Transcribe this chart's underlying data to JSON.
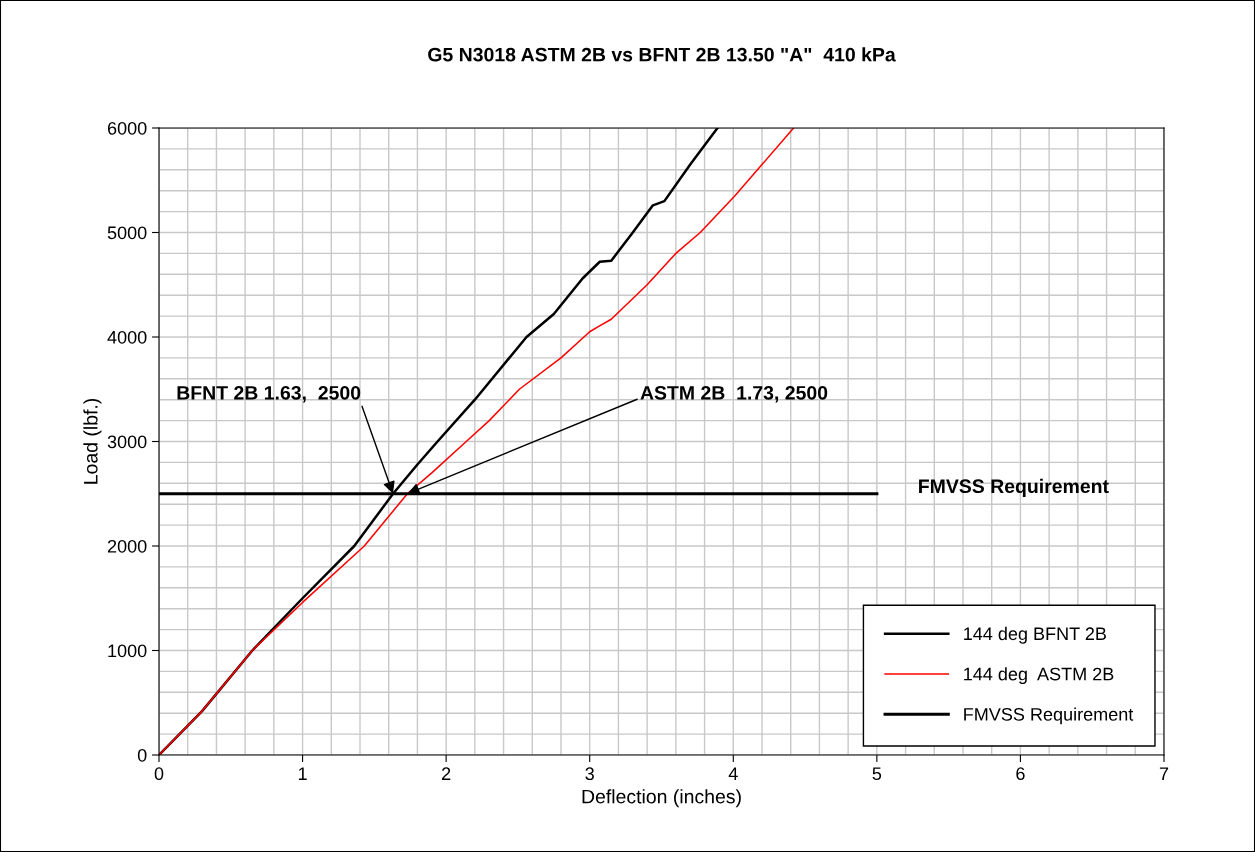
{
  "chart_data": {
    "type": "line",
    "title": "G5 N3018 ASTM 2B vs BFNT 2B 13.50 \"A\"  410 kPa",
    "xlabel": "Deflection (inches)",
    "ylabel": "Load (lbf.)",
    "xlim": [
      0,
      7
    ],
    "ylim": [
      0,
      6000
    ],
    "xticks": [
      0,
      1,
      2,
      3,
      4,
      5,
      6,
      7
    ],
    "yticks": [
      0,
      1000,
      2000,
      3000,
      4000,
      5000,
      6000
    ],
    "grid": true,
    "legend": "bottom right",
    "marker": "none",
    "line_style": "solid",
    "series": [
      {
        "name": "144 deg BFNT 2B",
        "color": "#000000",
        "x": [
          0,
          0.3,
          0.65,
          1.0,
          1.36,
          1.63,
          1.8,
          1.94,
          2.2,
          2.56,
          2.75,
          2.95,
          3.07,
          3.15,
          3.3,
          3.44,
          3.52,
          3.7,
          3.89
        ],
        "values": [
          0,
          420,
          1000,
          1500,
          2000,
          2500,
          2780,
          3000,
          3400,
          4000,
          4220,
          4560,
          4720,
          4730,
          5000,
          5260,
          5300,
          5650,
          6000
        ]
      },
      {
        "name": "144 deg  ASTM 2B",
        "color": "#ff0000",
        "x": [
          0,
          0.3,
          0.65,
          1.0,
          1.43,
          1.73,
          1.9,
          2.14,
          2.3,
          2.51,
          2.8,
          3.0,
          3.06,
          3.15,
          3.4,
          3.6,
          3.77,
          4.01,
          4.2,
          4.42
        ],
        "values": [
          0,
          420,
          1000,
          1460,
          2000,
          2500,
          2700,
          3000,
          3200,
          3500,
          3800,
          4050,
          4100,
          4170,
          4500,
          4800,
          5000,
          5350,
          5650,
          6000
        ]
      },
      {
        "name": "FMVSS Requirement",
        "color": "#000000",
        "x": [
          0,
          5
        ],
        "values": [
          2500,
          2500
        ]
      }
    ],
    "annotations": [
      {
        "text": "BFNT 2B 1.63,  2500",
        "x": 1.63,
        "y": 2500
      },
      {
        "text": "ASTM 2B  1.73, 2500",
        "x": 1.73,
        "y": 2500
      },
      "FMVSS Requirement"
    ]
  }
}
